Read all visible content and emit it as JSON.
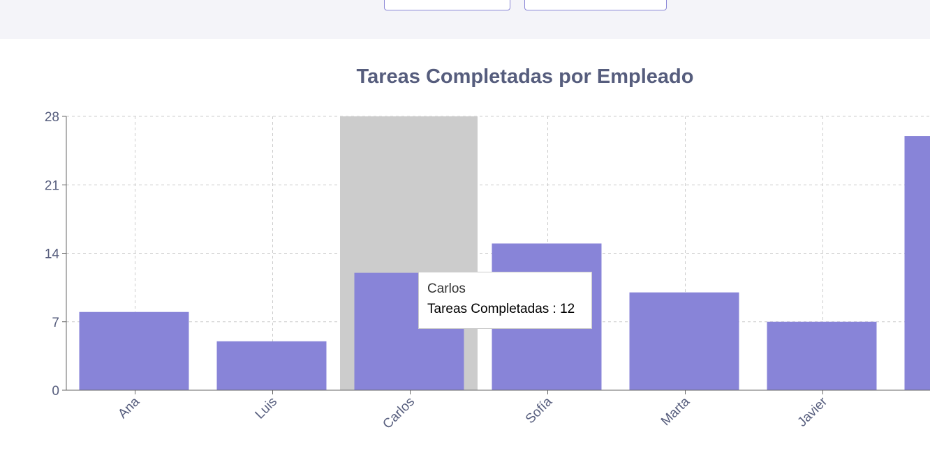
{
  "colors": {
    "bar": "#8884d8",
    "cursor": "#cccccc",
    "grid": "#cccccc",
    "axis": "#666666",
    "text": "#565d7d"
  },
  "chart_data": {
    "type": "bar",
    "title": "Tareas Completadas por Empleado",
    "categories": [
      "Ana",
      "Luis",
      "Carlos",
      "Sofía",
      "Marta",
      "Javier",
      ""
    ],
    "series": [
      {
        "name": "Tareas Completadas",
        "values": [
          8,
          5,
          12,
          15,
          10,
          7,
          26
        ]
      }
    ],
    "yticks": [
      0,
      7,
      14,
      21,
      28
    ],
    "ylim": [
      0,
      28
    ],
    "grid": true,
    "highlighted_category": "Carlos"
  },
  "tooltip": {
    "label": "Carlos",
    "series_name": "Tareas Completadas",
    "separator": " : ",
    "value": "12"
  }
}
